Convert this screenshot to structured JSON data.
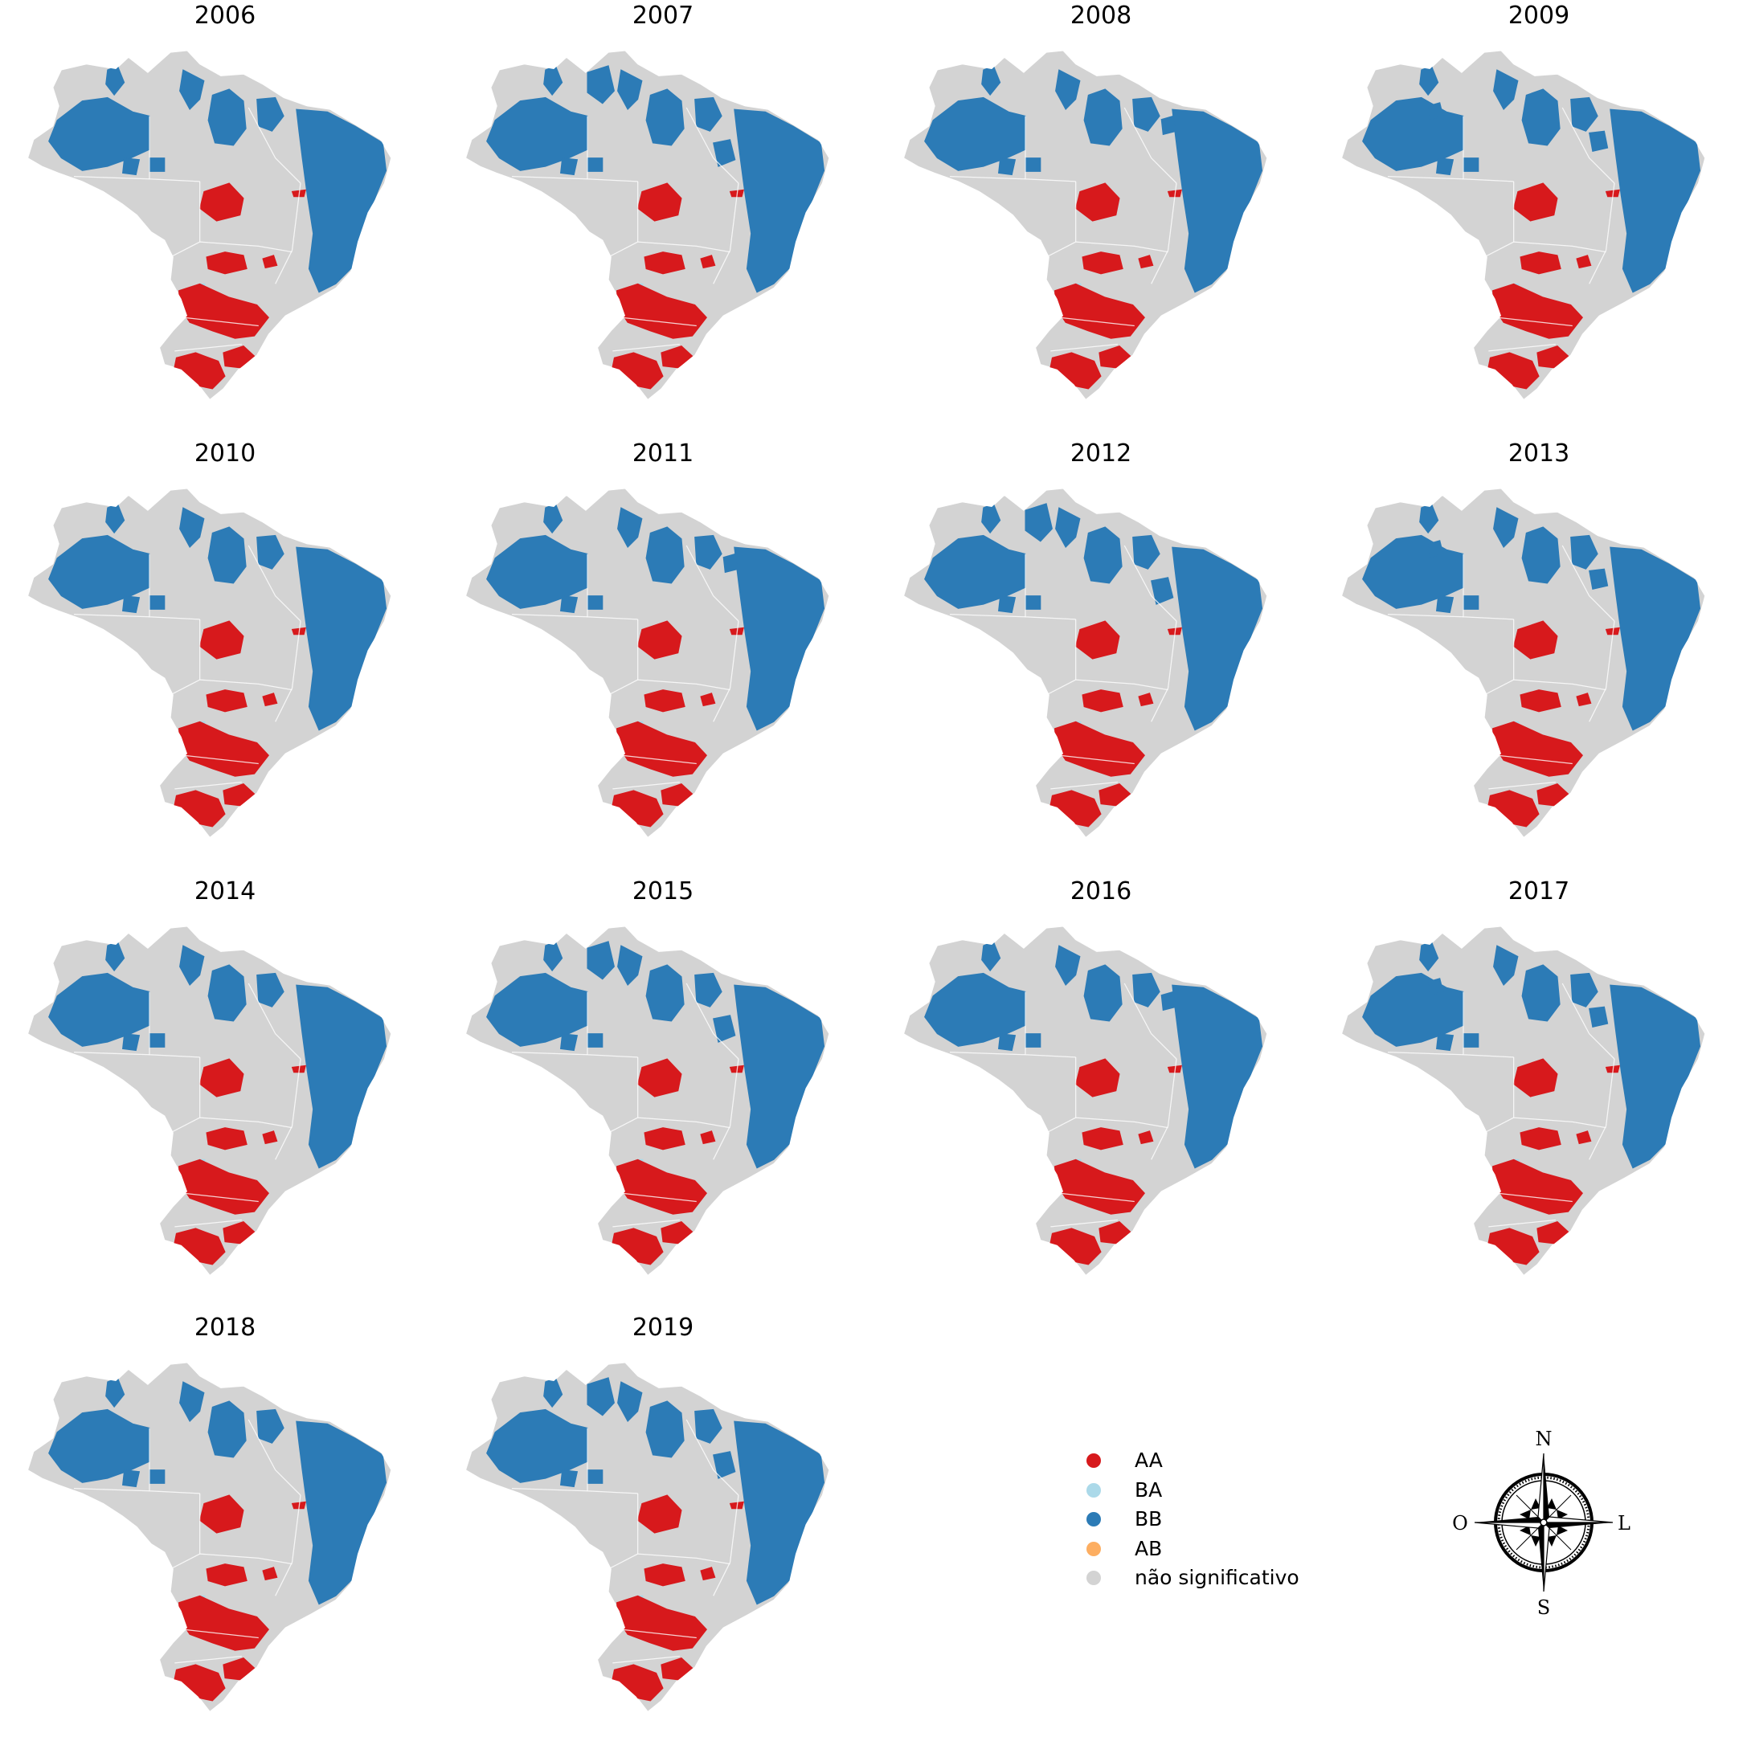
{
  "figure": {
    "panels": [
      {
        "year": "2006",
        "variant": 0
      },
      {
        "year": "2007",
        "variant": 1
      },
      {
        "year": "2008",
        "variant": 2
      },
      {
        "year": "2009",
        "variant": 3
      },
      {
        "year": "2010",
        "variant": 0
      },
      {
        "year": "2011",
        "variant": 2
      },
      {
        "year": "2012",
        "variant": 1
      },
      {
        "year": "2013",
        "variant": 3
      },
      {
        "year": "2014",
        "variant": 0
      },
      {
        "year": "2015",
        "variant": 1
      },
      {
        "year": "2016",
        "variant": 2
      },
      {
        "year": "2017",
        "variant": 3
      },
      {
        "year": "2018",
        "variant": 0
      },
      {
        "year": "2019",
        "variant": 1
      }
    ]
  },
  "legend": {
    "items": [
      {
        "label": "AA",
        "color": "#d7191c"
      },
      {
        "label": "BA",
        "color": "#abd9e9"
      },
      {
        "label": "BB",
        "color": "#2c7bb6"
      },
      {
        "label": "AB",
        "color": "#fdae61"
      },
      {
        "label": "não significativo",
        "color": "#d3d3d3"
      }
    ]
  },
  "compass": {
    "north": "N",
    "south": "S",
    "west": "O",
    "east": "L"
  },
  "colors": {
    "land": "#d3d3d3",
    "border": "#ffffff",
    "high_high": "#d7191c",
    "low_low": "#2c7bb6",
    "low_high": "#abd9e9"
  }
}
